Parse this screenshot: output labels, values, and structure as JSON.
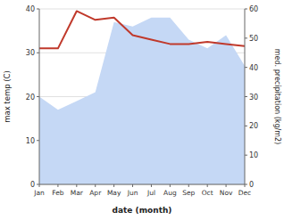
{
  "chart_data": {
    "type": "line",
    "categories": [
      "Jan",
      "Feb",
      "Mar",
      "Apr",
      "May",
      "Jun",
      "Jul",
      "Aug",
      "Sep",
      "Oct",
      "Nov",
      "Dec"
    ],
    "series": [
      {
        "type": "area",
        "axis": "y2",
        "color": "#c5d8f5",
        "values": [
          30,
          25.5,
          28.5,
          31.5,
          55.5,
          54,
          57,
          57,
          49.5,
          46.5,
          51,
          40.5
        ]
      },
      {
        "type": "line",
        "color": "#c0392b",
        "values": [
          31,
          31,
          39.5,
          37.5,
          38,
          34,
          33,
          32,
          32,
          32.5,
          32,
          31.5
        ]
      }
    ],
    "xlabel": "date (month)",
    "ylabel": "max temp (C)",
    "y2label": "med. precipitation (kg/m2)",
    "ylim": [
      0,
      40
    ],
    "yticks": [
      0,
      10,
      20,
      30,
      40
    ],
    "y2lim": [
      0,
      60
    ],
    "y2ticks": [
      0,
      10,
      20,
      30,
      40,
      50,
      60
    ],
    "grid": true
  }
}
